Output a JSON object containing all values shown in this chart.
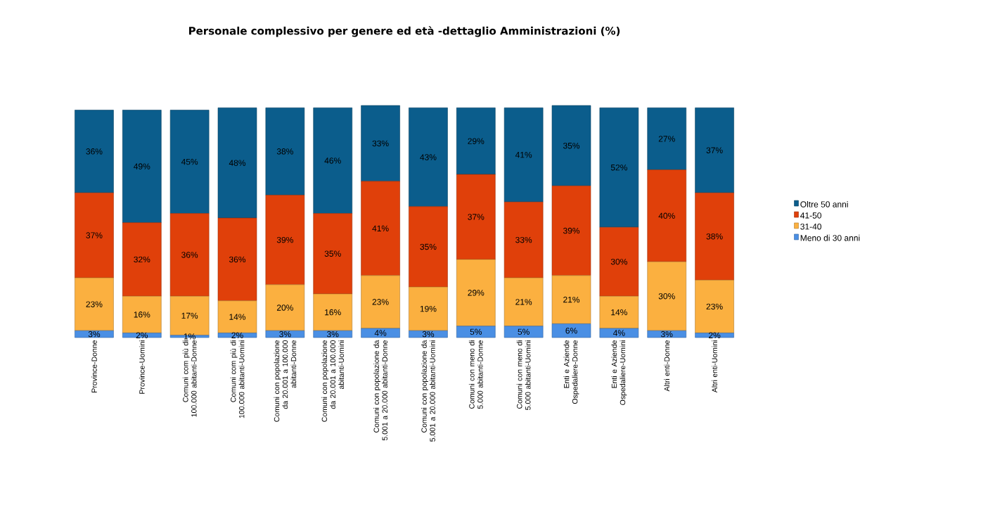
{
  "chart_data": {
    "type": "bar",
    "stacked": true,
    "title": "Personale complessivo per genere ed età -dettaglio Amministrazioni (%)",
    "categories": [
      "Province-Donne",
      "Province-Uomini",
      "Comuni com più di 100.000 abitanti-Donne",
      "Comuni com più di 100.000 abitanti-Uomini",
      "Comuni con popolazione da 20.001 a 100.000 abitanti-Donne",
      "Comuni con popolazione da 20.001 a 100.000 abitanti-Uomini",
      "Comuni con popolazione da 5.001 a 20.000 abitanti-Donne",
      "Comuni con popolazione da 5.001 a 20.000 abitanti-Uomini",
      "Comuni con meno di 5.000 abitanti-Donne",
      "Comuni con meno di 5.000 abitanti-Uomini",
      "Enti e Aziende Ospedaliere-Donne",
      "Enti e Aziende Ospedaliere-Uomini",
      "Altri enti-Donne",
      "Altri enti-Uomini"
    ],
    "series": [
      {
        "name": "Meno di 30 anni",
        "color": "#4a8fe4",
        "values": [
          3,
          2,
          1,
          2,
          3,
          3,
          4,
          3,
          5,
          5,
          6,
          4,
          3,
          2
        ],
        "value_labels": [
          "3%",
          "2%",
          "1%",
          "2%",
          "3%",
          "3%",
          "4%",
          "3%",
          "5%",
          "5%",
          "6%",
          "4%",
          "3%",
          "2%"
        ]
      },
      {
        "name": "31-40",
        "color": "#fbb040",
        "values": [
          23,
          16,
          17,
          14,
          20,
          16,
          23,
          19,
          29,
          21,
          21,
          14,
          30,
          23
        ],
        "value_labels": [
          "23%",
          "16%",
          "17%",
          "14%",
          "20%",
          "16%",
          "23%",
          "19%",
          "29%",
          "21%",
          "21%",
          "14%",
          "30%",
          "23%"
        ]
      },
      {
        "name": "41-50",
        "color": "#e0400a",
        "values": [
          37,
          32,
          36,
          36,
          39,
          35,
          41,
          35,
          37,
          33,
          39,
          30,
          40,
          38
        ],
        "value_labels": [
          "37%",
          "32%",
          "36%",
          "36%",
          "39%",
          "35%",
          "41%",
          "35%",
          "37%",
          "33%",
          "39%",
          "30%",
          "40%",
          "38%"
        ]
      },
      {
        "name": "Oltre 50 anni",
        "color": "#0b5d8c",
        "values": [
          36,
          49,
          45,
          48,
          38,
          46,
          33,
          43,
          29,
          41,
          35,
          52,
          27,
          37
        ],
        "value_labels": [
          "36%",
          "49%",
          "45%",
          "48%",
          "38%",
          "46%",
          "33%",
          "43%",
          "29%",
          "41%",
          "35%",
          "52%",
          "27%",
          "37%"
        ]
      }
    ],
    "legend": "right"
  }
}
